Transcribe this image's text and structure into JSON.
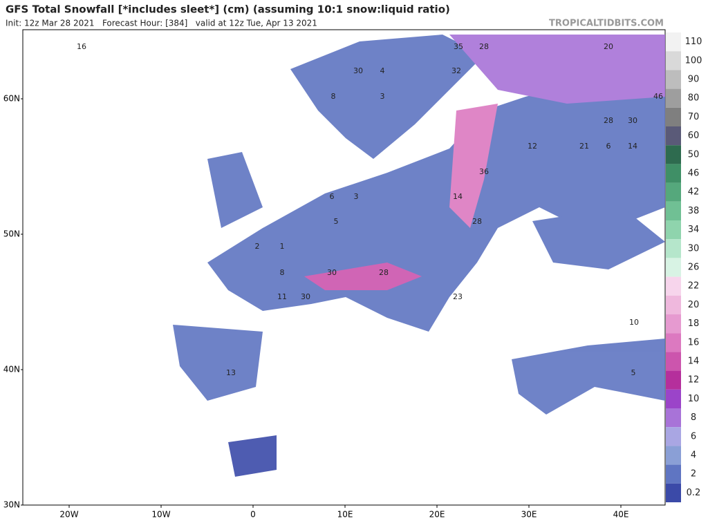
{
  "header": {
    "title": "GFS Total Snowfall [*includes sleet*] (cm) (assuming 10:1 snow:liquid ratio)",
    "subtitle": "Init: 12z Mar 28 2021   Forecast Hour: [384]   valid at 12z Tue, Apr 13 2021",
    "source": "TROPICALTIDBITS.COM"
  },
  "map": {
    "lat_labels": [
      "60N",
      "50N",
      "40N",
      "30N"
    ],
    "lon_labels": [
      "20W",
      "10W",
      "0",
      "10E",
      "20E",
      "30E",
      "40E"
    ],
    "point_labels": [
      "16",
      "35",
      "28",
      "30",
      "4",
      "32",
      "8",
      "3",
      "20",
      "46",
      "30",
      "28",
      "6",
      "3",
      "14",
      "36",
      "28",
      "5",
      "1",
      "2",
      "8",
      "30",
      "28",
      "11",
      "30",
      "23",
      "13",
      "10",
      "5",
      "12",
      "21",
      "6",
      "14"
    ]
  },
  "legend": {
    "labels": [
      "110",
      "100",
      "90",
      "80",
      "70",
      "60",
      "50",
      "46",
      "42",
      "38",
      "34",
      "30",
      "26",
      "22",
      "20",
      "18",
      "16",
      "14",
      "12",
      "10",
      "8",
      "6",
      "4",
      "2",
      "0.2"
    ],
    "colors": [
      "#f2f2f2",
      "#d9d9d9",
      "#bdbdbd",
      "#9e9e9e",
      "#7f7f7f",
      "#5a5a78",
      "#2e6b4f",
      "#3f8f66",
      "#55a87c",
      "#70c094",
      "#8fd4ad",
      "#b5e6cb",
      "#d8f3e4",
      "#f7d5ec",
      "#efb8dd",
      "#e69ad0",
      "#dc79c0",
      "#cc55ad",
      "#b52f9c",
      "#9b44c9",
      "#a873d8",
      "#a9a6e3",
      "#8a9fd6",
      "#5f75c2",
      "#3b4aa8"
    ]
  }
}
